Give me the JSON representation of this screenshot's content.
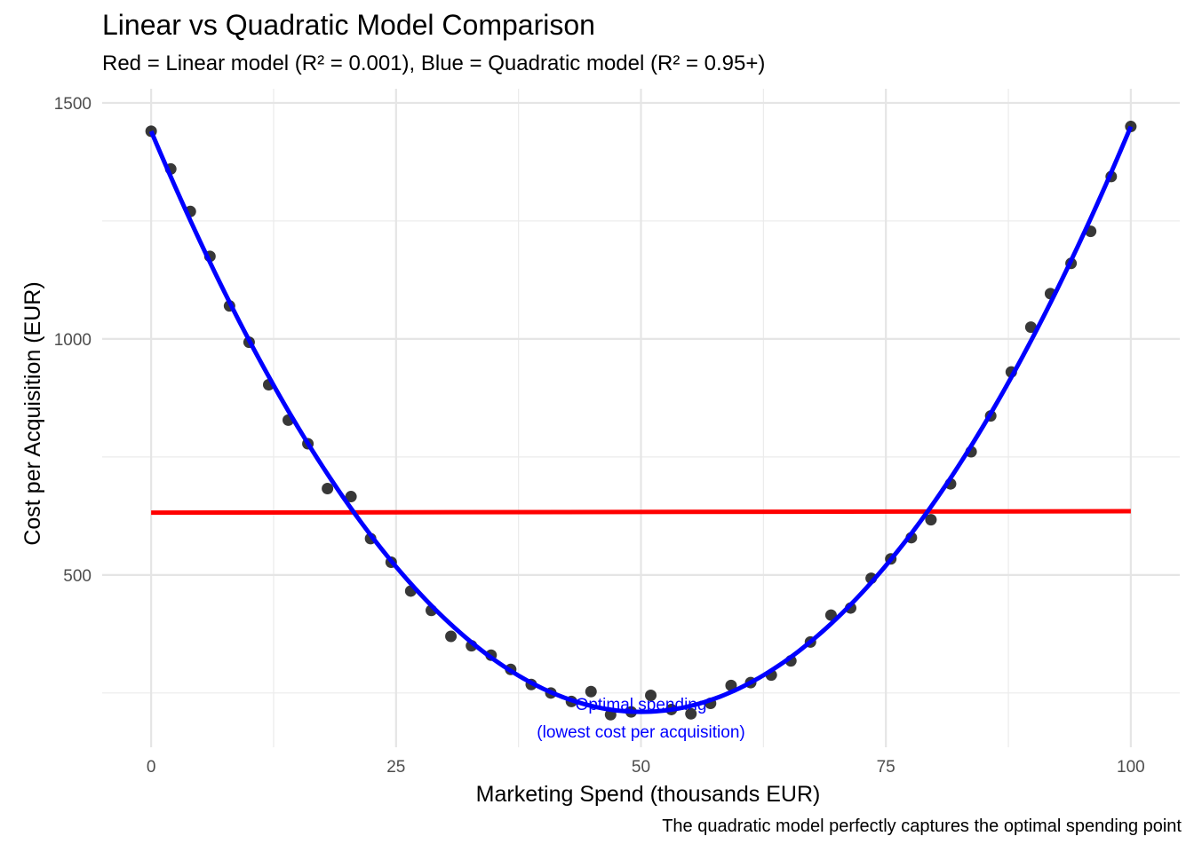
{
  "chart_data": {
    "type": "scatter",
    "title": "Linear vs Quadratic Model Comparison",
    "subtitle": "Red = Linear model (R² = 0.001), Blue = Quadratic model (R² = 0.95+)",
    "xlabel": "Marketing Spend (thousands EUR)",
    "ylabel": "Cost per Acquisition (EUR)",
    "caption": "The quadratic model perfectly captures the optimal spending point",
    "xlim": [
      -5,
      105
    ],
    "ylim": [
      135,
      1530
    ],
    "x_ticks": [
      0,
      25,
      50,
      75,
      100
    ],
    "x_tick_labels": [
      "0",
      "25",
      "50",
      "75",
      "100"
    ],
    "y_ticks": [
      500,
      1000,
      1500
    ],
    "y_tick_labels": [
      "500",
      "1000",
      "1500"
    ],
    "grid": true,
    "points": {
      "name": "Observed data",
      "x": [
        0,
        2,
        4,
        6,
        8,
        10,
        12,
        14,
        16,
        18,
        20.4,
        22.4,
        24.5,
        26.5,
        28.6,
        30.6,
        32.7,
        34.7,
        36.7,
        38.8,
        40.8,
        42.9,
        44.9,
        46.9,
        49,
        51,
        53.1,
        55.1,
        57.1,
        59.2,
        61.2,
        63.3,
        65.3,
        67.3,
        69.4,
        71.4,
        73.5,
        75.5,
        77.6,
        79.6,
        81.6,
        83.7,
        85.7,
        87.8,
        89.8,
        91.8,
        93.9,
        95.9,
        98,
        100
      ],
      "y": [
        1440,
        1360,
        1270,
        1175,
        1070,
        993,
        903,
        828,
        778,
        683,
        666,
        577,
        527,
        466,
        425,
        370,
        350,
        330,
        300,
        268,
        250,
        232,
        253,
        204,
        210,
        245,
        215,
        206,
        228,
        266,
        272,
        288,
        318,
        358,
        415,
        430,
        493,
        534,
        579,
        617,
        693,
        761,
        837,
        930,
        1025,
        1096,
        1160,
        1228,
        1344,
        1450
      ]
    },
    "series": [
      {
        "name": "Linear model",
        "color": "#ff0000",
        "fit": "linear",
        "r2": "0.001",
        "values_at_xlim": [
          632,
          635
        ],
        "x_range": [
          0,
          100
        ]
      },
      {
        "name": "Quadratic model",
        "color": "#0000ff",
        "fit": "quadratic",
        "r2": "0.95+",
        "vertex": [
          50,
          210
        ],
        "value_at_0": 1440,
        "value_at_100": 1450,
        "x_range": [
          0,
          100
        ]
      }
    ],
    "annotation": {
      "lines": [
        "Optimal spending",
        "(lowest cost per acquisition)"
      ],
      "x": 50,
      "y": 210,
      "color": "#0000ff"
    }
  }
}
